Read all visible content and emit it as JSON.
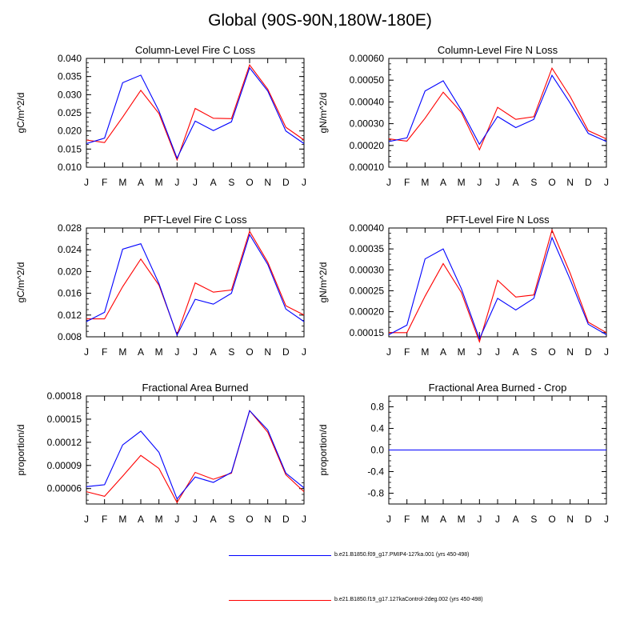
{
  "title": "Global (90S-90N,180W-180E)",
  "months": [
    "J",
    "F",
    "M",
    "A",
    "M",
    "J",
    "J",
    "A",
    "S",
    "O",
    "N",
    "D",
    "J"
  ],
  "legend": [
    {
      "label": "b.e21.B1850.f09_g17.PMIP4-127ka.001 (yrs 450-498)",
      "color": "#0000ff"
    },
    {
      "label": "b.e21.B1850.f19_g17.127kaControl-2deg.002 (yrs 450-498)",
      "color": "#ff0000"
    }
  ],
  "chart_data": [
    {
      "type": "line",
      "title": "Column-Level Fire C Loss",
      "ylabel": "gC/m^2/d",
      "ylim": [
        0.01,
        0.04
      ],
      "yticks": [
        "0.010",
        "0.015",
        "0.020",
        "0.025",
        "0.030",
        "0.035",
        "0.040"
      ],
      "series": [
        {
          "name": "PMIP4-127ka",
          "color": "#0000ff",
          "values": [
            0.0165,
            0.018,
            0.0333,
            0.0354,
            0.0255,
            0.0125,
            0.0227,
            0.0201,
            0.0225,
            0.0374,
            0.031,
            0.02,
            0.0165
          ]
        },
        {
          "name": "127kaControl",
          "color": "#ff0000",
          "values": [
            0.0175,
            0.0168,
            0.0238,
            0.0312,
            0.0248,
            0.012,
            0.0262,
            0.0235,
            0.0234,
            0.0382,
            0.0315,
            0.021,
            0.0175
          ]
        }
      ]
    },
    {
      "type": "line",
      "title": "Column-Level Fire N Loss",
      "ylabel": "gN/m^2/d",
      "ylim": [
        0.0001,
        0.0006
      ],
      "yticks": [
        "0.00010",
        "0.00020",
        "0.00030",
        "0.00040",
        "0.00050",
        "0.00060"
      ],
      "series": [
        {
          "name": "PMIP4-127ka",
          "color": "#0000ff",
          "values": [
            0.000218,
            0.000235,
            0.00045,
            0.000497,
            0.000362,
            0.000205,
            0.000333,
            0.000282,
            0.00032,
            0.000522,
            0.000395,
            0.000255,
            0.000218
          ]
        },
        {
          "name": "127kaControl",
          "color": "#ff0000",
          "values": [
            0.00023,
            0.00022,
            0.000325,
            0.000445,
            0.000352,
            0.00018,
            0.000375,
            0.00032,
            0.000332,
            0.000555,
            0.000425,
            0.000268,
            0.00023
          ]
        }
      ]
    },
    {
      "type": "line",
      "title": "PFT-Level Fire C Loss",
      "ylabel": "gC/m^2/d",
      "ylim": [
        0.008,
        0.028
      ],
      "yticks": [
        "0.008",
        "0.012",
        "0.016",
        "0.020",
        "0.024",
        "0.028"
      ],
      "series": [
        {
          "name": "PMIP4-127ka",
          "color": "#0000ff",
          "values": [
            0.0108,
            0.0125,
            0.0241,
            0.0251,
            0.0178,
            0.0083,
            0.0149,
            0.014,
            0.016,
            0.0268,
            0.0213,
            0.0131,
            0.0108
          ]
        },
        {
          "name": "127kaControl",
          "color": "#ff0000",
          "values": [
            0.0113,
            0.0113,
            0.0172,
            0.0223,
            0.0175,
            0.0084,
            0.0179,
            0.0162,
            0.0166,
            0.0274,
            0.0217,
            0.0137,
            0.012
          ]
        }
      ]
    },
    {
      "type": "line",
      "title": "PFT-Level Fire N Loss",
      "ylabel": "gN/m^2/d",
      "ylim": [
        0.00014,
        0.0004
      ],
      "yticks": [
        "0.00015",
        "0.00020",
        "0.00025",
        "0.00030",
        "0.00035",
        "0.00040"
      ],
      "ytick_values": [
        0.00015,
        0.0002,
        0.00025,
        0.0003,
        0.00035,
        0.0004
      ],
      "series": [
        {
          "name": "PMIP4-127ka",
          "color": "#0000ff",
          "values": [
            0.000145,
            0.000168,
            0.000326,
            0.00035,
            0.000255,
            0.000135,
            0.000232,
            0.000204,
            0.000232,
            0.000377,
            0.000277,
            0.00017,
            0.000145
          ]
        },
        {
          "name": "127kaControl",
          "color": "#ff0000",
          "values": [
            0.00015,
            0.00015,
            0.000237,
            0.000315,
            0.000246,
            0.000128,
            0.000275,
            0.000235,
            0.00024,
            0.000395,
            0.000292,
            0.000175,
            0.00015
          ]
        }
      ]
    },
    {
      "type": "line",
      "title": "Fractional Area Burned",
      "ylabel": "proportion/d",
      "ylim": [
        4e-05,
        0.00018
      ],
      "yticks": [
        "0.00006",
        "0.00009",
        "0.00012",
        "0.00015",
        "0.00018"
      ],
      "ytick_values": [
        6e-05,
        9e-05,
        0.00012,
        0.00015,
        0.00018
      ],
      "series": [
        {
          "name": "PMIP4-127ka",
          "color": "#0000ff",
          "values": [
            6.25e-05,
            6.5e-05,
            0.0001165,
            0.0001345,
            0.000107,
            4.65e-05,
            7.5e-05,
            6.8e-05,
            8.1e-05,
            0.000161,
            0.000136,
            8e-05,
            6.1e-05
          ]
        },
        {
          "name": "127kaControl",
          "color": "#ff0000",
          "values": [
            5.6e-05,
            5e-05,
            7.6e-05,
            0.000103,
            8.6e-05,
            4.2e-05,
            8.1e-05,
            7.2e-05,
            8e-05,
            0.000161,
            0.000133,
            7.8e-05,
            5.6e-05
          ]
        }
      ]
    },
    {
      "type": "line",
      "title": "Fractional Area Burned - Crop",
      "ylabel": "proportion/d",
      "ylim": [
        -1.0,
        1.0
      ],
      "yticks": [
        "-0.8",
        "-0.4",
        "0.0",
        "0.4",
        "0.8"
      ],
      "ytick_values": [
        -0.8,
        -0.4,
        0.0,
        0.4,
        0.8
      ],
      "series": [
        {
          "name": "PMIP4-127ka",
          "color": "#0000ff",
          "values": [
            0,
            0,
            0,
            0,
            0,
            0,
            0,
            0,
            0,
            0,
            0,
            0,
            0
          ]
        },
        {
          "name": "127kaControl",
          "color": "#ff0000",
          "values": [
            0,
            0,
            0,
            0,
            0,
            0,
            0,
            0,
            0,
            0,
            0,
            0,
            0
          ]
        }
      ]
    }
  ]
}
